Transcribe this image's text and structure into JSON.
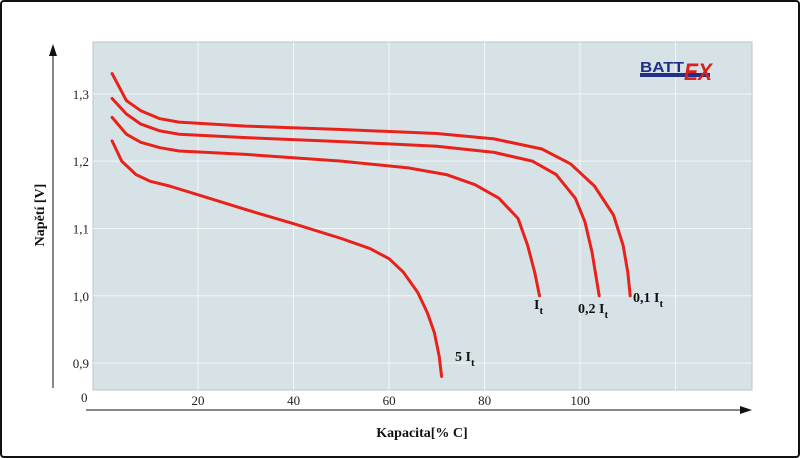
{
  "chart_data": {
    "type": "line",
    "xlabel": "Kapacita[% C]",
    "ylabel": "Napětí [V]",
    "xlim": [
      -2,
      136
    ],
    "ylim": [
      0.86,
      1.377
    ],
    "x_ticks": [
      {
        "value": 20,
        "label": "20"
      },
      {
        "value": 40,
        "label": "40"
      },
      {
        "value": 60,
        "label": "60"
      },
      {
        "value": 80,
        "label": "80"
      },
      {
        "value": 100,
        "label": "100"
      }
    ],
    "y_ticks": [
      {
        "value": 0.9,
        "label": "0,9"
      },
      {
        "value": 1.0,
        "label": "1,0"
      },
      {
        "value": 1.1,
        "label": "1,1"
      },
      {
        "value": 1.2,
        "label": "1,2"
      },
      {
        "value": 1.3,
        "label": "1,3"
      }
    ],
    "origin_label": "0",
    "grid": true,
    "logo": {
      "left": "BATT",
      "right": "EX"
    },
    "colors": {
      "plot_bg": "#d6e2e5",
      "curve": "#e8221b",
      "grid": "#f2f6f7",
      "logo_blue": "#232f86",
      "logo_red": "#d8211c"
    },
    "series": [
      {
        "name": "0,1 It",
        "label_main": "0,1 I",
        "label_sub": "t",
        "points": [
          [
            2,
            1.33
          ],
          [
            5,
            1.29
          ],
          [
            8,
            1.275
          ],
          [
            12,
            1.263
          ],
          [
            16,
            1.258
          ],
          [
            30,
            1.252
          ],
          [
            50,
            1.247
          ],
          [
            70,
            1.241
          ],
          [
            82,
            1.233
          ],
          [
            92,
            1.218
          ],
          [
            98,
            1.196
          ],
          [
            103,
            1.163
          ],
          [
            107,
            1.12
          ],
          [
            109,
            1.075
          ],
          [
            110,
            1.035
          ],
          [
            110.5,
            1.0
          ]
        ]
      },
      {
        "name": "0,2 It",
        "label_main": "0,2 I",
        "label_sub": "t",
        "points": [
          [
            2,
            1.293
          ],
          [
            5,
            1.27
          ],
          [
            8,
            1.255
          ],
          [
            12,
            1.245
          ],
          [
            16,
            1.24
          ],
          [
            30,
            1.235
          ],
          [
            50,
            1.229
          ],
          [
            70,
            1.222
          ],
          [
            82,
            1.213
          ],
          [
            90,
            1.2
          ],
          [
            95,
            1.18
          ],
          [
            99,
            1.145
          ],
          [
            101,
            1.11
          ],
          [
            102.5,
            1.065
          ],
          [
            104,
            1.0
          ]
        ]
      },
      {
        "name": "It",
        "label_main": "I",
        "label_sub": "t",
        "points": [
          [
            2,
            1.265
          ],
          [
            5,
            1.24
          ],
          [
            8,
            1.228
          ],
          [
            12,
            1.22
          ],
          [
            16,
            1.215
          ],
          [
            30,
            1.21
          ],
          [
            50,
            1.2
          ],
          [
            64,
            1.19
          ],
          [
            72,
            1.18
          ],
          [
            78,
            1.165
          ],
          [
            83,
            1.145
          ],
          [
            87,
            1.115
          ],
          [
            89,
            1.075
          ],
          [
            90.5,
            1.035
          ],
          [
            91.5,
            1.0
          ]
        ]
      },
      {
        "name": "5 It",
        "label_main": "5 I",
        "label_sub": "t",
        "points": [
          [
            2,
            1.23
          ],
          [
            4,
            1.2
          ],
          [
            7,
            1.18
          ],
          [
            10,
            1.17
          ],
          [
            14,
            1.163
          ],
          [
            20,
            1.15
          ],
          [
            30,
            1.128
          ],
          [
            40,
            1.107
          ],
          [
            50,
            1.085
          ],
          [
            56,
            1.07
          ],
          [
            60,
            1.055
          ],
          [
            63,
            1.035
          ],
          [
            66,
            1.005
          ],
          [
            68,
            0.975
          ],
          [
            69.5,
            0.945
          ],
          [
            70.5,
            0.91
          ],
          [
            71,
            0.88
          ]
        ]
      }
    ]
  }
}
